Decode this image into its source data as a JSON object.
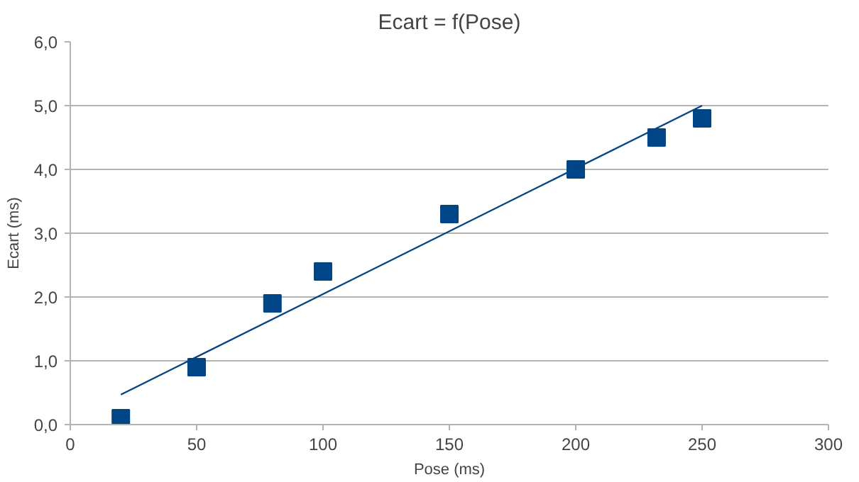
{
  "chart_data": {
    "type": "scatter",
    "title": "Ecart = f(Pose)",
    "xlabel": "Pose (ms)",
    "ylabel": "Ecart (ms)",
    "series": [
      {
        "color": "#004586",
        "marker": "square",
        "x": [
          20,
          50,
          80,
          100,
          150,
          200,
          232,
          250
        ],
        "values": [
          0.1,
          0.9,
          1.9,
          2.4,
          3.3,
          4.0,
          4.5,
          4.8
        ]
      },
      {
        "type": "line",
        "color": "#004586",
        "line_style": "solid",
        "x": [
          20,
          250
        ],
        "values": [
          0.47,
          5.0
        ]
      }
    ],
    "xlim": [
      0,
      300
    ],
    "ylim": [
      0,
      6
    ],
    "xticks": [
      0,
      50,
      100,
      150,
      200,
      250,
      300
    ],
    "yticks": [
      {
        "value": 0,
        "label": "0,0"
      },
      {
        "value": 1,
        "label": "1,0"
      },
      {
        "value": 2,
        "label": "2,0"
      },
      {
        "value": 3,
        "label": "3,0"
      },
      {
        "value": 4,
        "label": "4,0"
      },
      {
        "value": 5,
        "label": "5,0"
      },
      {
        "value": 6,
        "label": "6,0"
      }
    ],
    "grid": "y"
  }
}
